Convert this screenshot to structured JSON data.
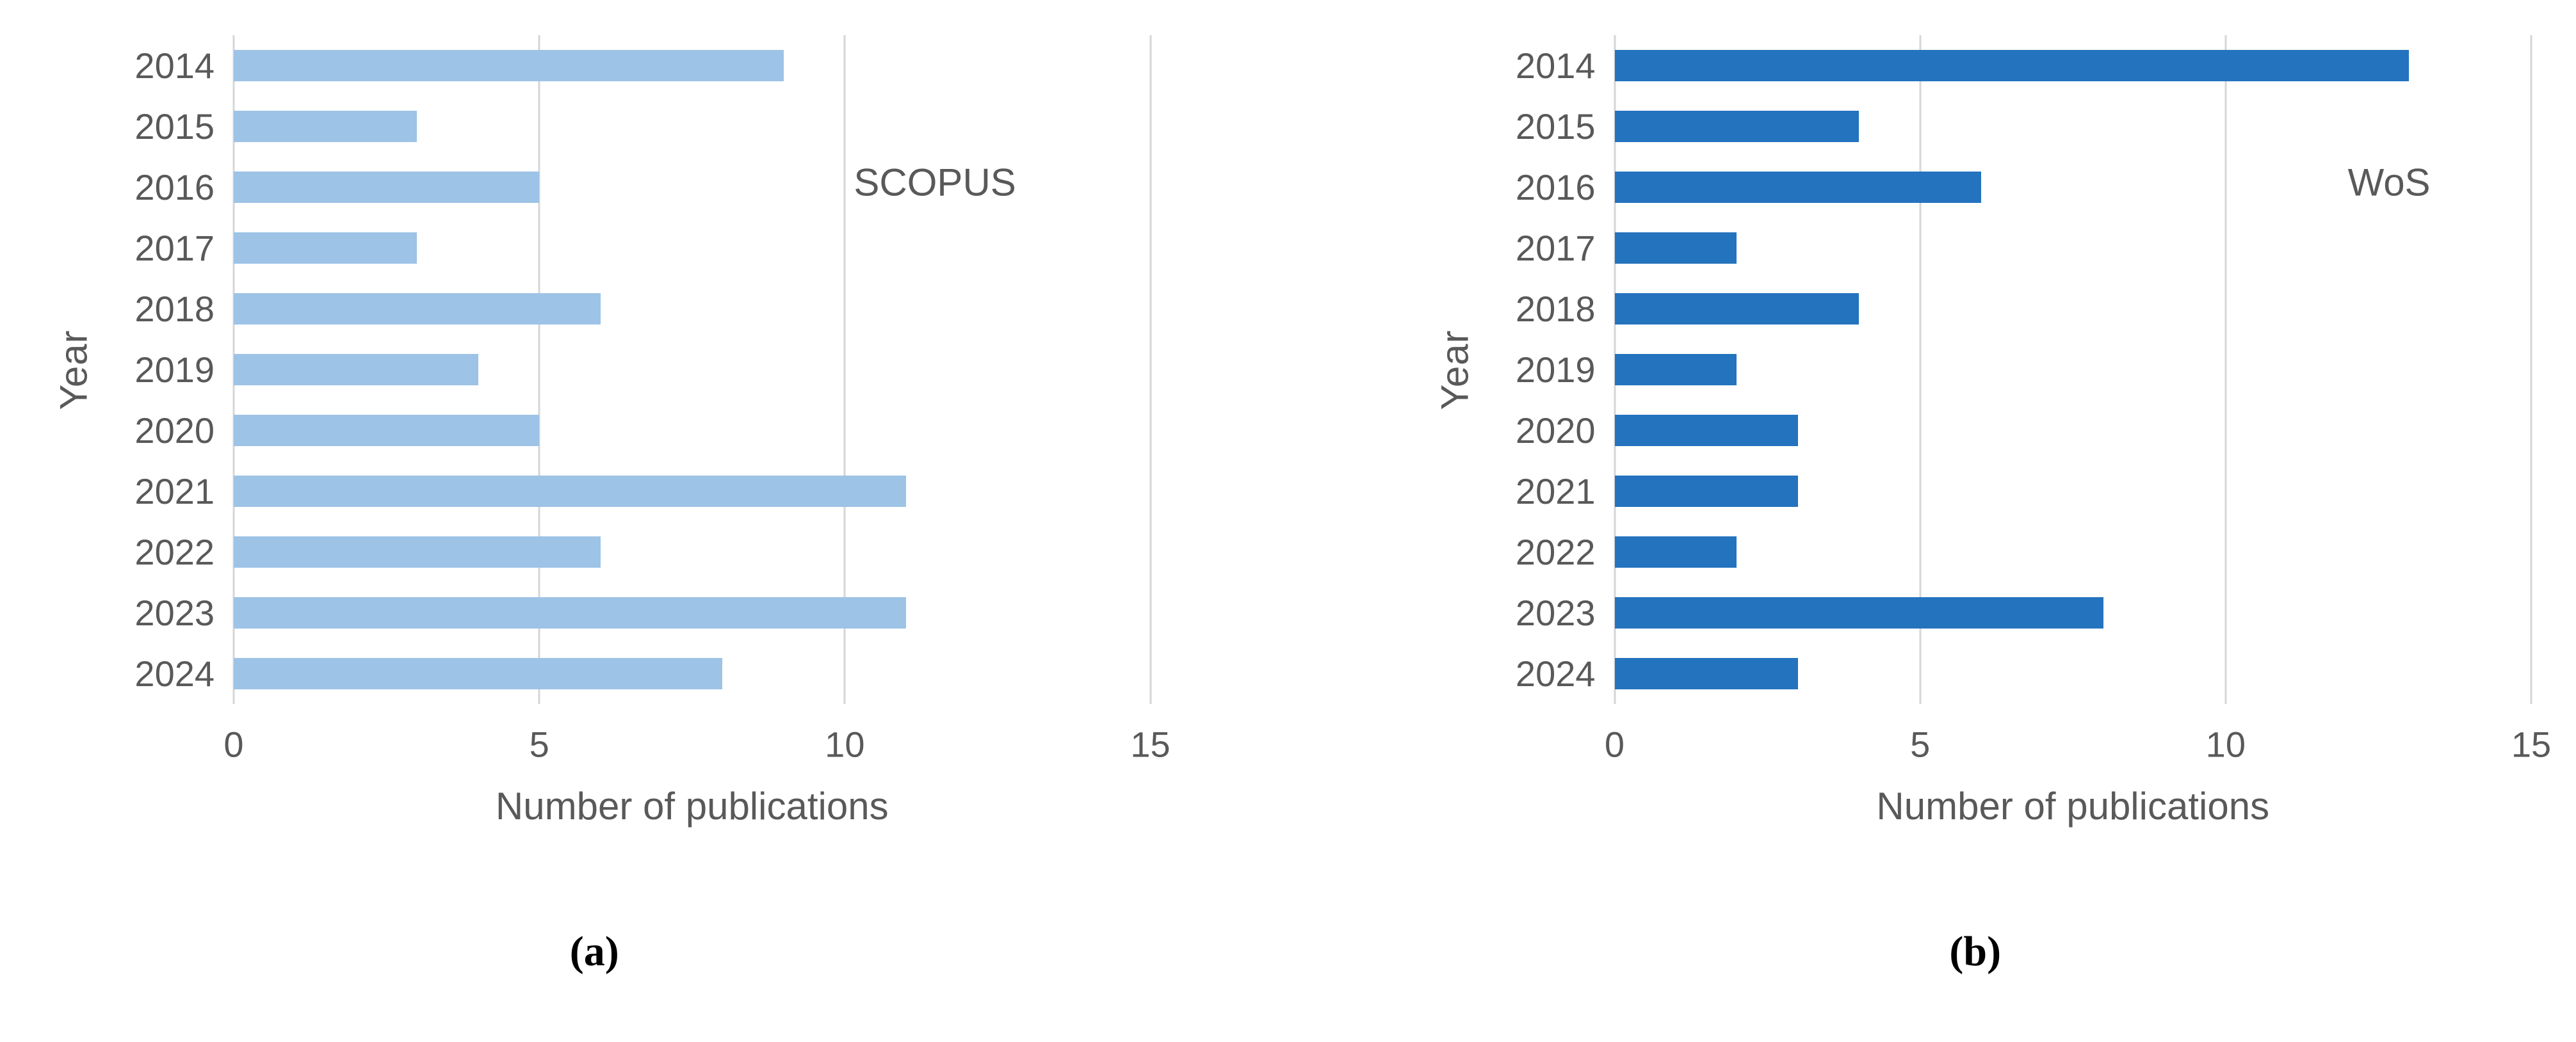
{
  "page": {
    "background": "#ffffff",
    "text_color": "#595959"
  },
  "chart_data": [
    {
      "type": "bar",
      "orientation": "horizontal",
      "panel_label": "(a)",
      "annotation": "SCOPUS",
      "title": "",
      "xlabel": "Number of publications",
      "ylabel": "Year",
      "categories": [
        "2014",
        "2015",
        "2016",
        "2017",
        "2018",
        "2019",
        "2020",
        "2021",
        "2022",
        "2023",
        "2024"
      ],
      "values": [
        9,
        3,
        5,
        3,
        6,
        4,
        5,
        11,
        6,
        11,
        8
      ],
      "xlim": [
        0,
        15
      ],
      "xticks": [
        0,
        5,
        10,
        15
      ],
      "grid": true,
      "gridline_color": "#D6D6D6",
      "bar_color": "#9DC3E6",
      "legend": "none"
    },
    {
      "type": "bar",
      "orientation": "horizontal",
      "panel_label": "(b)",
      "annotation": "WoS",
      "title": "",
      "xlabel": "Number of publications",
      "ylabel": "Year",
      "categories": [
        "2014",
        "2015",
        "2016",
        "2017",
        "2018",
        "2019",
        "2020",
        "2021",
        "2022",
        "2023",
        "2024"
      ],
      "values": [
        13,
        4,
        6,
        2,
        4,
        2,
        3,
        3,
        2,
        8,
        3
      ],
      "xlim": [
        0,
        15
      ],
      "xticks": [
        0,
        5,
        10,
        15
      ],
      "grid": true,
      "gridline_color": "#D6D6D6",
      "bar_color": "#2473BE",
      "legend": "none"
    }
  ]
}
